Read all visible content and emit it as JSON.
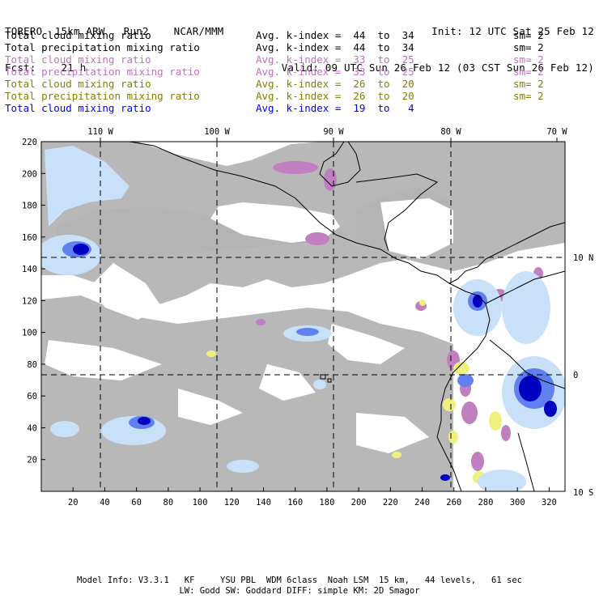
{
  "header": {
    "line1_left": "TORERO  15km ARW   Run2    NCAR/MMM",
    "line1_right": "Init: 12 UTC Sat 25 Feb 12",
    "line2_left": "Fcst:    21 h",
    "line2_right": "Valid: 09 UTC Sun 26 Feb 12 (03 CST Sun 26 Feb 12)"
  },
  "legend": [
    {
      "field": "Total cloud mixing ratio",
      "avg": "Avg. k-index =  44  to  34",
      "sm": "sm= 2",
      "color": "#000000"
    },
    {
      "field": "Total precipitation mixing ratio",
      "avg": "Avg. k-index =  44  to  34",
      "sm": "sm= 2",
      "color": "#000000"
    },
    {
      "field": "Total cloud mixing ratio",
      "avg": "Avg. k-index =  33  to  25",
      "sm": "sm= 2",
      "color": "#c070c0"
    },
    {
      "field": "Total precipitation mixing ratio",
      "avg": "Avg. k-index =  33  to  25",
      "sm": "sm= 2",
      "color": "#c070c0"
    },
    {
      "field": "Total cloud mixing ratio",
      "avg": "Avg. k-index =  26  to  20",
      "sm": "sm= 2",
      "color": "#808000"
    },
    {
      "field": "Total precipitation mixing ratio",
      "avg": "Avg. k-index =  26  to  20",
      "sm": "sm= 2",
      "color": "#808000"
    },
    {
      "field": "Total cloud mixing ratio",
      "avg": "Avg. k-index =  19  to   4",
      "sm": "",
      "color": "#0000ff"
    }
  ],
  "map": {
    "lon_labels": [
      "110 W",
      "100 W",
      "90 W",
      "80 W",
      "70 W"
    ],
    "lat_labels": [
      "10 N",
      "0",
      "10 S"
    ],
    "x_ticks": [
      "20",
      "40",
      "60",
      "80",
      "100",
      "120",
      "140",
      "160",
      "180",
      "200",
      "220",
      "240",
      "260",
      "280",
      "300",
      "320"
    ],
    "y_ticks": [
      "20",
      "40",
      "60",
      "80",
      "100",
      "120",
      "140",
      "160",
      "180",
      "200",
      "220"
    ],
    "colors": {
      "gray": "#b4b4b4",
      "purple": "#c080c0",
      "yellow": "#f0f080",
      "light_blue": "#c8e0f8",
      "mid_blue": "#6080f0",
      "dark_blue": "#0000c0",
      "coast": "#000000",
      "grid": "#000000"
    }
  },
  "footer": {
    "line1": "Model Info: V3.3.1   KF     YSU PBL  WDM 6class  Noah LSM  15 km,   44 levels,   61 sec",
    "line2": "LW: Godd SW: Goddard DIFF: simple KM: 2D Smagor"
  }
}
